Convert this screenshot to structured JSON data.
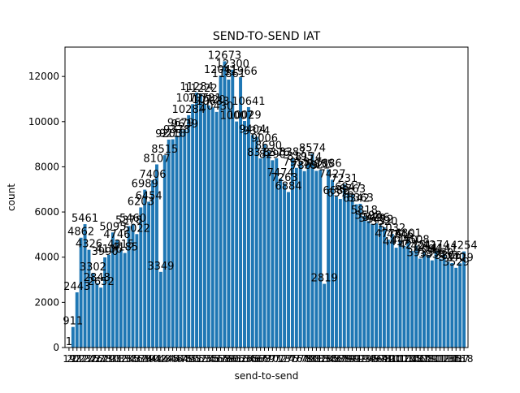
{
  "chart_data": {
    "type": "bar",
    "title": "SEND-TO-SEND IAT",
    "xlabel": "send-to-send",
    "ylabel": "count",
    "bar_color": "#1f77b4",
    "ylim": [
      0,
      13300
    ],
    "y_ticks": [
      0,
      2000,
      4000,
      6000,
      8000,
      10000,
      12000
    ],
    "y_tick_labels": [
      "0",
      "2000",
      "4000",
      "6000",
      "8000",
      "10000",
      "12000"
    ],
    "x": [
      19,
      20,
      21,
      22,
      23,
      24,
      25,
      26,
      27,
      28,
      29,
      30,
      31,
      32,
      33,
      34,
      35,
      36,
      37,
      38,
      39,
      40,
      41,
      42,
      43,
      44,
      45,
      46,
      47,
      48,
      49,
      50,
      51,
      52,
      53,
      54,
      55,
      56,
      57,
      58,
      59,
      60,
      61,
      62,
      63,
      64,
      65,
      66,
      67,
      68,
      69,
      70,
      71,
      72,
      73,
      74,
      75,
      76,
      77,
      78,
      79,
      80,
      81,
      82,
      83,
      84,
      85,
      86,
      87,
      88,
      89,
      90,
      91,
      92,
      93,
      94,
      95,
      96,
      97,
      98,
      99,
      100,
      101,
      102,
      103,
      104,
      105,
      106,
      107,
      108,
      109,
      110,
      111,
      112,
      113,
      114,
      115,
      116,
      117,
      118
    ],
    "values": [
      1,
      911,
      2443,
      4862,
      5461,
      4326,
      3302,
      2848,
      2652,
      3990,
      4106,
      5095,
      4746,
      4315,
      4185,
      5378,
      5460,
      5022,
      6203,
      6989,
      6454,
      7406,
      8107,
      3349,
      8515,
      9205,
      9218,
      9378,
      9679,
      9639,
      10284,
      10775,
      11284,
      11222,
      10781,
      10720,
      10633,
      10430,
      12041,
      12673,
      11861,
      12300,
      10007,
      11966,
      10029,
      10641,
      9404,
      9324,
      8372,
      9006,
      8690,
      8290,
      8376,
      7474,
      7263,
      6884,
      8387,
      7953,
      8195,
      7809,
      8174,
      8574,
      7821,
      7855,
      2819,
      7886,
      7427,
      6682,
      6576,
      7231,
      6847,
      6763,
      6342,
      6363,
      5818,
      5598,
      5470,
      5496,
      5412,
      5320,
      4776,
      5032,
      4417,
      4746,
      4490,
      4801,
      4275,
      4508,
      3935,
      4241,
      4094,
      3858,
      4274,
      3930,
      4141,
      3806,
      3740,
      3529,
      3729,
      4254
    ],
    "data_labels": [
      "1",
      "911",
      "2443",
      "4862",
      "5461",
      "4326",
      "3302",
      "2848",
      "2652",
      "3990",
      "4106",
      "5095",
      "4746",
      "4315",
      "4185",
      "5378",
      "5460",
      "5022",
      "6203",
      "6989",
      "6454",
      "7406",
      "8107",
      "3349",
      "8515",
      "9205",
      "9218",
      "9378",
      "9679",
      "9639",
      "10284",
      "10775",
      "11284",
      "11222",
      "10781",
      "10720",
      "10633",
      "10430",
      "12041",
      "12673",
      "11861",
      "12300",
      "10007",
      "11966",
      "10029",
      "10641",
      "9404",
      "9324",
      "8372",
      "9006",
      "8690",
      "8290",
      "8376",
      "7474",
      "7263",
      "6884",
      "8387",
      "7953",
      "8195",
      "7809",
      "8174",
      "8574",
      "7821",
      "7855",
      "2819",
      "7886",
      "7427",
      "6682",
      "6576",
      "7231",
      "6847",
      "6763",
      "6342",
      "6363",
      "5818",
      "5598",
      "5470",
      "5496",
      "5412",
      "5320",
      "4776",
      "5032",
      "4417",
      "4746",
      "4490",
      "4801",
      "4275",
      "4508",
      "3935",
      "4241",
      "4094",
      "3858",
      "4274",
      "3930",
      "4141",
      "3806",
      "3740",
      "3529",
      "3729",
      "4254"
    ],
    "legend": "none",
    "grid": false
  }
}
